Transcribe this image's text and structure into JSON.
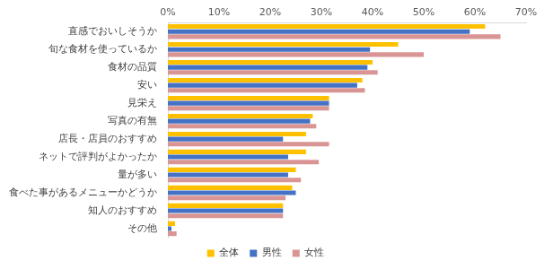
{
  "chart_data": {
    "type": "bar",
    "orientation": "horizontal",
    "categories": [
      "直感でおいしそうか",
      "旬な食材を使っているか",
      "食材の品質",
      "安い",
      "見栄え",
      "写真の有無",
      "店長・店員のおすすめ",
      "ネットで評判がよかったか",
      "量が多い",
      "食べた事があるメニューかどうか",
      "知人のおすすめ",
      "その他"
    ],
    "series": [
      {
        "name": "全体",
        "color": "#ffc000",
        "values": [
          62,
          45,
          40,
          38,
          31.5,
          28.3,
          27,
          27,
          25,
          24.3,
          22.5,
          1.4
        ]
      },
      {
        "name": "男性",
        "color": "#4472c4",
        "values": [
          59,
          39.5,
          39,
          37,
          31.5,
          27.8,
          22.5,
          23.5,
          23.5,
          25,
          22.5,
          0.7
        ]
      },
      {
        "name": "女性",
        "color": "#d99594",
        "values": [
          65,
          50,
          41,
          38.5,
          31.5,
          29,
          31.5,
          29.5,
          26,
          23,
          22.5,
          1.7
        ]
      }
    ],
    "xlim": [
      0,
      70
    ],
    "xticks": [
      {
        "value": 0,
        "label": "0%"
      },
      {
        "value": 10,
        "label": "10%"
      },
      {
        "value": 20,
        "label": "20%"
      },
      {
        "value": 30,
        "label": "30%"
      },
      {
        "value": 40,
        "label": "40%"
      },
      {
        "value": 50,
        "label": "50%"
      },
      {
        "value": 60,
        "label": "60%"
      },
      {
        "value": 70,
        "label": "70%"
      }
    ],
    "grid": false,
    "legend": "bottom"
  }
}
